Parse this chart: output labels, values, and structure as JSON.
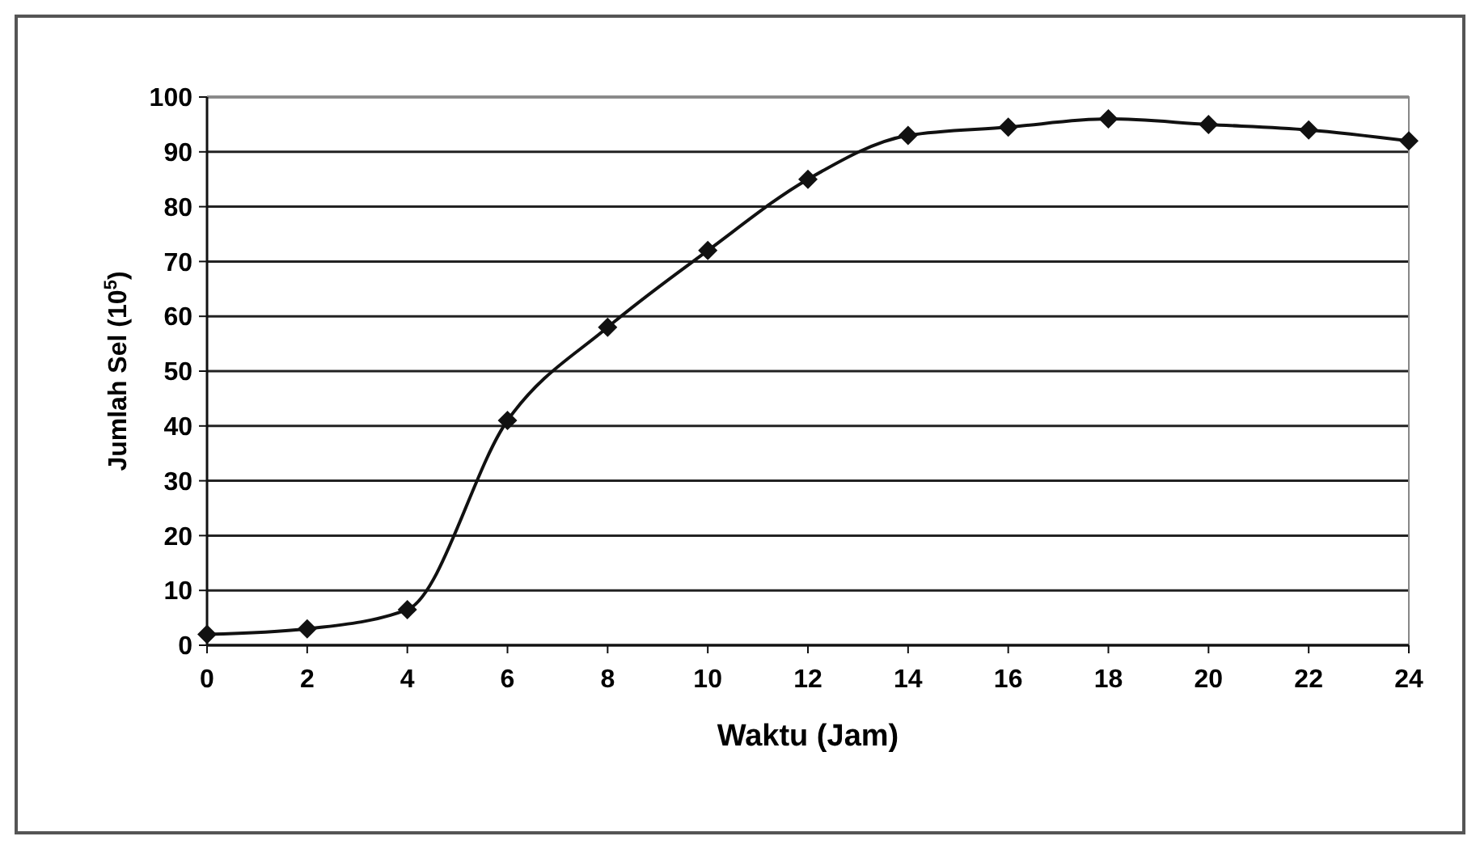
{
  "chart_data": {
    "type": "line",
    "xlabel": "Waktu (Jam)",
    "ylabel": "Jumlah Sel (10$^{5}$)",
    "x": [
      0,
      2,
      4,
      6,
      8,
      10,
      12,
      14,
      16,
      18,
      20,
      22,
      24
    ],
    "series": [
      {
        "color": "#111111",
        "values": [
          2,
          3,
          6.5,
          41,
          58,
          72,
          85,
          93,
          94.5,
          96,
          95,
          94,
          92
        ]
      }
    ],
    "xlim": [
      0,
      24
    ],
    "xticks": [
      0,
      2,
      4,
      6,
      8,
      10,
      12,
      14,
      16,
      18,
      20,
      22,
      24
    ],
    "ylim": [
      0,
      100
    ],
    "yticks": [
      0,
      10,
      20,
      30,
      40,
      50,
      60,
      70,
      80,
      90,
      100
    ],
    "grid": "y",
    "marker": "diamond",
    "line_style": "solid"
  }
}
